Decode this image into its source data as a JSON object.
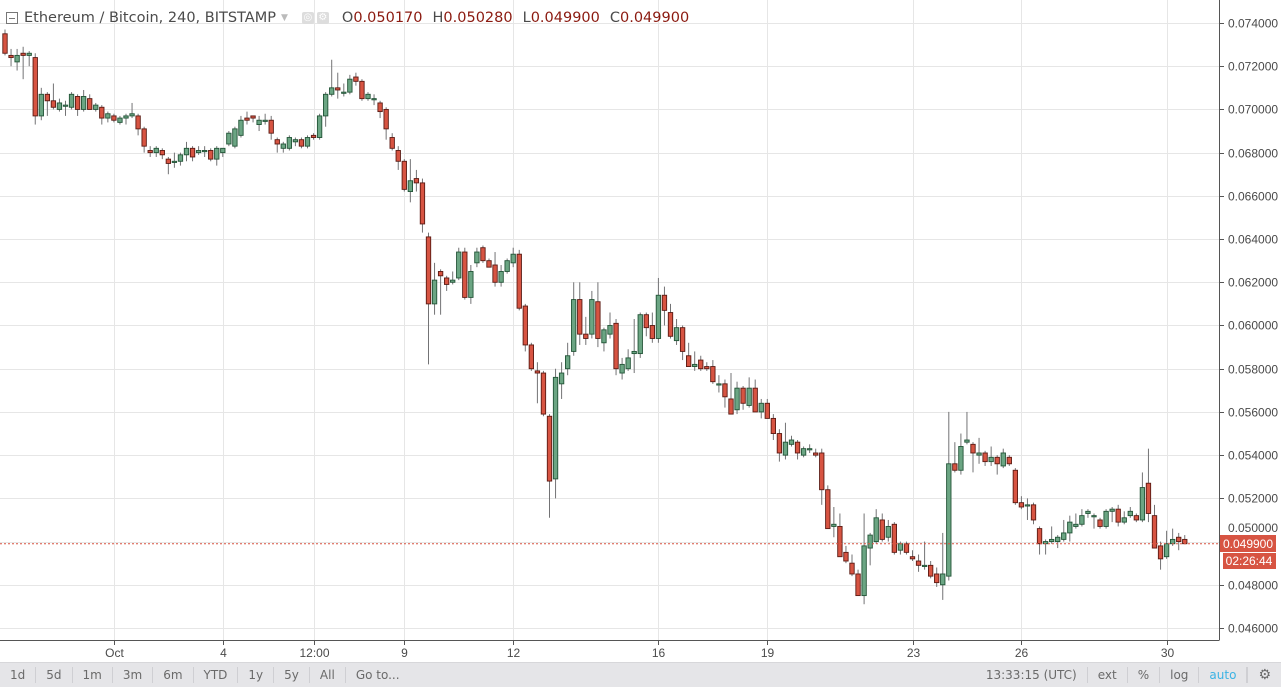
{
  "header": {
    "symbol_title": "Ethereum / Bitcoin, 240, BITSTAMP",
    "ohlc": [
      {
        "label": "O",
        "value": "0.050170"
      },
      {
        "label": "H",
        "value": "0.050280"
      },
      {
        "label": "L",
        "value": "0.049900"
      },
      {
        "label": "C",
        "value": "0.049900"
      }
    ]
  },
  "price_tag": {
    "value": "0.049900",
    "countdown": "02:26:44"
  },
  "toolbar": {
    "ranges": [
      "1d",
      "5d",
      "1m",
      "3m",
      "6m",
      "YTD",
      "1y",
      "5y",
      "All",
      "Go to..."
    ],
    "clock": "13:33:15 (UTC)",
    "ext": "ext",
    "percent": "%",
    "log": "log",
    "auto": "auto"
  },
  "colors": {
    "up": "#6ba583",
    "up_border": "#225437",
    "down": "#d75442",
    "down_border": "#5b1a13",
    "wick": "#737375",
    "accent": "#3bb3e4"
  },
  "chart_data": {
    "type": "candlestick",
    "title": "Ethereum / Bitcoin, 240, BITSTAMP",
    "ylim": [
      0.0455,
      0.0745
    ],
    "grid": true,
    "y_ticks": [
      "0.046000",
      "0.048000",
      "0.050000",
      "0.052000",
      "0.054000",
      "0.056000",
      "0.058000",
      "0.060000",
      "0.062000",
      "0.064000",
      "0.066000",
      "0.068000",
      "0.070000",
      "0.072000",
      "0.074000"
    ],
    "x_ticks": [
      {
        "index": 18,
        "label": "Oct"
      },
      {
        "index": 36,
        "label": "4"
      },
      {
        "index": 51,
        "label": "12:00"
      },
      {
        "index": 66,
        "label": "9"
      },
      {
        "index": 84,
        "label": "12"
      },
      {
        "index": 108,
        "label": "16"
      },
      {
        "index": 126,
        "label": "19"
      },
      {
        "index": 150,
        "label": "23"
      },
      {
        "index": 168,
        "label": "26"
      },
      {
        "index": 192,
        "label": "30"
      }
    ],
    "last_price": 0.0499,
    "ohlc": [
      [
        0.0735,
        0.0737,
        0.0725,
        0.0726
      ],
      [
        0.0725,
        0.0728,
        0.072,
        0.0724
      ],
      [
        0.0722,
        0.0728,
        0.0718,
        0.0725
      ],
      [
        0.0726,
        0.0729,
        0.0714,
        0.0725
      ],
      [
        0.0725,
        0.0727,
        0.072,
        0.0726
      ],
      [
        0.0724,
        0.0726,
        0.0693,
        0.0697
      ],
      [
        0.0697,
        0.071,
        0.0695,
        0.0707
      ],
      [
        0.0707,
        0.0708,
        0.0697,
        0.0704
      ],
      [
        0.0704,
        0.0712,
        0.07,
        0.0701
      ],
      [
        0.07,
        0.0705,
        0.0699,
        0.0703
      ],
      [
        0.0702,
        0.0704,
        0.0697,
        0.0702
      ],
      [
        0.0701,
        0.0708,
        0.07,
        0.0707
      ],
      [
        0.0706,
        0.0707,
        0.0697,
        0.07
      ],
      [
        0.07,
        0.0709,
        0.0699,
        0.0706
      ],
      [
        0.0705,
        0.0707,
        0.07,
        0.07
      ],
      [
        0.07,
        0.0703,
        0.0699,
        0.0702
      ],
      [
        0.0701,
        0.0702,
        0.0693,
        0.0696
      ],
      [
        0.0696,
        0.0699,
        0.0694,
        0.0698
      ],
      [
        0.0697,
        0.0698,
        0.0694,
        0.0695
      ],
      [
        0.0694,
        0.0697,
        0.0693,
        0.0696
      ],
      [
        0.0696,
        0.0698,
        0.0693,
        0.0697
      ],
      [
        0.0697,
        0.0703,
        0.0696,
        0.0698
      ],
      [
        0.0697,
        0.0698,
        0.0688,
        0.0691
      ],
      [
        0.0691,
        0.0692,
        0.068,
        0.0683
      ],
      [
        0.0681,
        0.0683,
        0.0678,
        0.068
      ],
      [
        0.068,
        0.0683,
        0.0678,
        0.0682
      ],
      [
        0.0681,
        0.0682,
        0.0677,
        0.0679
      ],
      [
        0.0677,
        0.0678,
        0.067,
        0.0675
      ],
      [
        0.0676,
        0.068,
        0.0673,
        0.0676
      ],
      [
        0.0676,
        0.068,
        0.0674,
        0.0679
      ],
      [
        0.0679,
        0.0685,
        0.0676,
        0.0682
      ],
      [
        0.0682,
        0.0683,
        0.0676,
        0.0678
      ],
      [
        0.068,
        0.0683,
        0.0679,
        0.0681
      ],
      [
        0.0681,
        0.0683,
        0.0678,
        0.0681
      ],
      [
        0.0681,
        0.0682,
        0.0676,
        0.0677
      ],
      [
        0.0677,
        0.0683,
        0.0674,
        0.0682
      ],
      [
        0.068,
        0.0682,
        0.0678,
        0.0682
      ],
      [
        0.0684,
        0.069,
        0.0683,
        0.0689
      ],
      [
        0.0683,
        0.0692,
        0.0682,
        0.0691
      ],
      [
        0.0688,
        0.0697,
        0.0687,
        0.0695
      ],
      [
        0.0696,
        0.0699,
        0.0693,
        0.0695
      ],
      [
        0.0697,
        0.0697,
        0.0694,
        0.0696
      ],
      [
        0.0693,
        0.0697,
        0.069,
        0.0695
      ],
      [
        0.0695,
        0.0698,
        0.0693,
        0.0695
      ],
      [
        0.0695,
        0.0697,
        0.0686,
        0.0689
      ],
      [
        0.0686,
        0.0687,
        0.068,
        0.0684
      ],
      [
        0.0682,
        0.0685,
        0.068,
        0.0684
      ],
      [
        0.0682,
        0.0688,
        0.0681,
        0.0687
      ],
      [
        0.0685,
        0.0687,
        0.0683,
        0.0686
      ],
      [
        0.0686,
        0.0687,
        0.0682,
        0.0683
      ],
      [
        0.0683,
        0.0688,
        0.0682,
        0.0687
      ],
      [
        0.0688,
        0.0689,
        0.0686,
        0.0687
      ],
      [
        0.0687,
        0.0698,
        0.0686,
        0.0697
      ],
      [
        0.0697,
        0.0708,
        0.0692,
        0.0707
      ],
      [
        0.0707,
        0.0723,
        0.0706,
        0.071
      ],
      [
        0.071,
        0.0717,
        0.0705,
        0.0709
      ],
      [
        0.0708,
        0.0712,
        0.0706,
        0.0708
      ],
      [
        0.0708,
        0.0716,
        0.0707,
        0.0714
      ],
      [
        0.0715,
        0.0717,
        0.0711,
        0.0713
      ],
      [
        0.0713,
        0.0714,
        0.0704,
        0.0705
      ],
      [
        0.0705,
        0.0708,
        0.0704,
        0.0707
      ],
      [
        0.0705,
        0.0707,
        0.0702,
        0.0705
      ],
      [
        0.0703,
        0.0704,
        0.0696,
        0.0699
      ],
      [
        0.07,
        0.0701,
        0.0686,
        0.0691
      ],
      [
        0.0687,
        0.0689,
        0.0681,
        0.0682
      ],
      [
        0.0681,
        0.0683,
        0.0672,
        0.0676
      ],
      [
        0.0676,
        0.0677,
        0.0662,
        0.0663
      ],
      [
        0.0662,
        0.0677,
        0.0657,
        0.0667
      ],
      [
        0.0668,
        0.0672,
        0.0662,
        0.0666
      ],
      [
        0.0666,
        0.0668,
        0.0643,
        0.0647
      ],
      [
        0.0641,
        0.0643,
        0.0582,
        0.061
      ],
      [
        0.061,
        0.0629,
        0.0605,
        0.0621
      ],
      [
        0.0625,
        0.0626,
        0.0605,
        0.0623
      ],
      [
        0.0622,
        0.0623,
        0.0616,
        0.0619
      ],
      [
        0.062,
        0.0625,
        0.0619,
        0.0621
      ],
      [
        0.0622,
        0.0636,
        0.0621,
        0.0634
      ],
      [
        0.0634,
        0.0636,
        0.0612,
        0.0613
      ],
      [
        0.0613,
        0.0628,
        0.061,
        0.0625
      ],
      [
        0.0629,
        0.0636,
        0.0627,
        0.0634
      ],
      [
        0.0636,
        0.0637,
        0.0629,
        0.063
      ],
      [
        0.063,
        0.0631,
        0.0627,
        0.0627
      ],
      [
        0.0628,
        0.0634,
        0.0618,
        0.062
      ],
      [
        0.062,
        0.0628,
        0.0618,
        0.0625
      ],
      [
        0.0625,
        0.0631,
        0.0624,
        0.063
      ],
      [
        0.0629,
        0.0636,
        0.0627,
        0.0633
      ],
      [
        0.0633,
        0.0635,
        0.0607,
        0.0608
      ],
      [
        0.0609,
        0.061,
        0.0588,
        0.0591
      ],
      [
        0.0591,
        0.0592,
        0.0579,
        0.058
      ],
      [
        0.0579,
        0.0583,
        0.0564,
        0.0578
      ],
      [
        0.0578,
        0.0579,
        0.0558,
        0.0559
      ],
      [
        0.0558,
        0.0559,
        0.0511,
        0.0528
      ],
      [
        0.0529,
        0.058,
        0.052,
        0.0576
      ],
      [
        0.0573,
        0.0583,
        0.0566,
        0.0578
      ],
      [
        0.058,
        0.0592,
        0.0577,
        0.0586
      ],
      [
        0.0588,
        0.062,
        0.0586,
        0.0612
      ],
      [
        0.0612,
        0.062,
        0.0591,
        0.0596
      ],
      [
        0.0596,
        0.0604,
        0.0591,
        0.0594
      ],
      [
        0.0596,
        0.0616,
        0.0594,
        0.0612
      ],
      [
        0.0611,
        0.062,
        0.059,
        0.0594
      ],
      [
        0.0592,
        0.0599,
        0.0588,
        0.0598
      ],
      [
        0.0596,
        0.0606,
        0.0594,
        0.06
      ],
      [
        0.0601,
        0.0603,
        0.0577,
        0.058
      ],
      [
        0.0578,
        0.0585,
        0.0575,
        0.0582
      ],
      [
        0.058,
        0.0589,
        0.0579,
        0.0585
      ],
      [
        0.0587,
        0.0603,
        0.0578,
        0.0588
      ],
      [
        0.0587,
        0.0606,
        0.0585,
        0.0605
      ],
      [
        0.0605,
        0.0606,
        0.0595,
        0.0599
      ],
      [
        0.06,
        0.0606,
        0.0592,
        0.0594
      ],
      [
        0.0594,
        0.0622,
        0.0592,
        0.0614
      ],
      [
        0.0614,
        0.0618,
        0.06,
        0.0607
      ],
      [
        0.0606,
        0.061,
        0.0594,
        0.0595
      ],
      [
        0.0593,
        0.0603,
        0.0591,
        0.0599
      ],
      [
        0.0599,
        0.06,
        0.0584,
        0.0588
      ],
      [
        0.0586,
        0.0592,
        0.0581,
        0.0581
      ],
      [
        0.0581,
        0.0588,
        0.0579,
        0.0582
      ],
      [
        0.0584,
        0.0586,
        0.0579,
        0.058
      ],
      [
        0.0581,
        0.0583,
        0.0579,
        0.058
      ],
      [
        0.0581,
        0.0584,
        0.0573,
        0.0574
      ],
      [
        0.0573,
        0.0577,
        0.0569,
        0.0573
      ],
      [
        0.0573,
        0.0575,
        0.0562,
        0.0567
      ],
      [
        0.0566,
        0.0578,
        0.0559,
        0.0559
      ],
      [
        0.0561,
        0.0574,
        0.0559,
        0.0571
      ],
      [
        0.0571,
        0.0572,
        0.0561,
        0.0564
      ],
      [
        0.0563,
        0.0576,
        0.0562,
        0.0571
      ],
      [
        0.0571,
        0.0575,
        0.056,
        0.056
      ],
      [
        0.056,
        0.0566,
        0.0557,
        0.0564
      ],
      [
        0.0564,
        0.0566,
        0.0557,
        0.0557
      ],
      [
        0.0557,
        0.0559,
        0.0547,
        0.055
      ],
      [
        0.055,
        0.0552,
        0.0537,
        0.0541
      ],
      [
        0.054,
        0.0555,
        0.0538,
        0.0546
      ],
      [
        0.0545,
        0.0549,
        0.0544,
        0.0547
      ],
      [
        0.0546,
        0.0547,
        0.0538,
        0.0541
      ],
      [
        0.054,
        0.0544,
        0.0539,
        0.0543
      ],
      [
        0.0543,
        0.0545,
        0.0541,
        0.0543
      ],
      [
        0.0541,
        0.0543,
        0.0539,
        0.054
      ],
      [
        0.0541,
        0.0543,
        0.0517,
        0.0524
      ],
      [
        0.0524,
        0.0526,
        0.0506,
        0.0506
      ],
      [
        0.0507,
        0.0516,
        0.0502,
        0.0508
      ],
      [
        0.0507,
        0.0513,
        0.0493,
        0.0493
      ],
      [
        0.0495,
        0.0498,
        0.049,
        0.0491
      ],
      [
        0.049,
        0.0494,
        0.0484,
        0.0485
      ],
      [
        0.0485,
        0.0487,
        0.0475,
        0.0475
      ],
      [
        0.0475,
        0.0513,
        0.0471,
        0.0498
      ],
      [
        0.0497,
        0.0504,
        0.0489,
        0.0503
      ],
      [
        0.05,
        0.0515,
        0.0499,
        0.0511
      ],
      [
        0.051,
        0.0513,
        0.05,
        0.0501
      ],
      [
        0.0502,
        0.051,
        0.05,
        0.0507
      ],
      [
        0.0508,
        0.0509,
        0.0494,
        0.0495
      ],
      [
        0.0496,
        0.05,
        0.0494,
        0.0499
      ],
      [
        0.0499,
        0.05,
        0.0494,
        0.0495
      ],
      [
        0.0493,
        0.0496,
        0.0491,
        0.0492
      ],
      [
        0.0491,
        0.0494,
        0.0486,
        0.0489
      ],
      [
        0.0489,
        0.05,
        0.0487,
        0.0489
      ],
      [
        0.0489,
        0.0491,
        0.0483,
        0.0484
      ],
      [
        0.0485,
        0.0488,
        0.0479,
        0.0481
      ],
      [
        0.048,
        0.0504,
        0.0473,
        0.0485
      ],
      [
        0.0484,
        0.056,
        0.0482,
        0.0536
      ],
      [
        0.0536,
        0.0546,
        0.0532,
        0.0533
      ],
      [
        0.0533,
        0.055,
        0.0531,
        0.0544
      ],
      [
        0.0546,
        0.056,
        0.0545,
        0.0547
      ],
      [
        0.0545,
        0.0546,
        0.0532,
        0.0541
      ],
      [
        0.054,
        0.0548,
        0.0536,
        0.0541
      ],
      [
        0.0541,
        0.0542,
        0.0535,
        0.0537
      ],
      [
        0.0537,
        0.0544,
        0.0535,
        0.0539
      ],
      [
        0.0539,
        0.054,
        0.0531,
        0.0536
      ],
      [
        0.0535,
        0.0543,
        0.0534,
        0.0541
      ],
      [
        0.0539,
        0.054,
        0.0535,
        0.0536
      ],
      [
        0.0533,
        0.0534,
        0.0517,
        0.0518
      ],
      [
        0.0518,
        0.0521,
        0.0515,
        0.0516
      ],
      [
        0.0517,
        0.052,
        0.051,
        0.0517
      ],
      [
        0.0517,
        0.0518,
        0.0508,
        0.051
      ],
      [
        0.0506,
        0.0507,
        0.0494,
        0.0499
      ],
      [
        0.0499,
        0.0501,
        0.0494,
        0.05
      ],
      [
        0.05,
        0.0507,
        0.0499,
        0.0501
      ],
      [
        0.05,
        0.0503,
        0.0497,
        0.0502
      ],
      [
        0.0501,
        0.051,
        0.05,
        0.0504
      ],
      [
        0.0504,
        0.0512,
        0.05,
        0.0509
      ],
      [
        0.0507,
        0.0513,
        0.0506,
        0.0508
      ],
      [
        0.0508,
        0.0515,
        0.0507,
        0.0512
      ],
      [
        0.0513,
        0.0515,
        0.0511,
        0.0514
      ],
      [
        0.0512,
        0.0513,
        0.0506,
        0.0512
      ],
      [
        0.051,
        0.0511,
        0.0506,
        0.0507
      ],
      [
        0.0507,
        0.0515,
        0.0506,
        0.0514
      ],
      [
        0.0514,
        0.0516,
        0.0509,
        0.0515
      ],
      [
        0.0515,
        0.0517,
        0.0507,
        0.0509
      ],
      [
        0.0509,
        0.0514,
        0.0508,
        0.0511
      ],
      [
        0.0512,
        0.0516,
        0.0511,
        0.0514
      ],
      [
        0.0512,
        0.0513,
        0.0509,
        0.051
      ],
      [
        0.051,
        0.0532,
        0.0509,
        0.0525
      ],
      [
        0.0527,
        0.0543,
        0.0509,
        0.0513
      ],
      [
        0.0512,
        0.0517,
        0.0497,
        0.0497
      ],
      [
        0.0498,
        0.05,
        0.0487,
        0.0492
      ],
      [
        0.0493,
        0.0505,
        0.0492,
        0.0499
      ],
      [
        0.0499,
        0.0506,
        0.0498,
        0.0501
      ],
      [
        0.0502,
        0.0504,
        0.0496,
        0.05
      ],
      [
        0.0501,
        0.0503,
        0.0499,
        0.0499
      ]
    ]
  }
}
